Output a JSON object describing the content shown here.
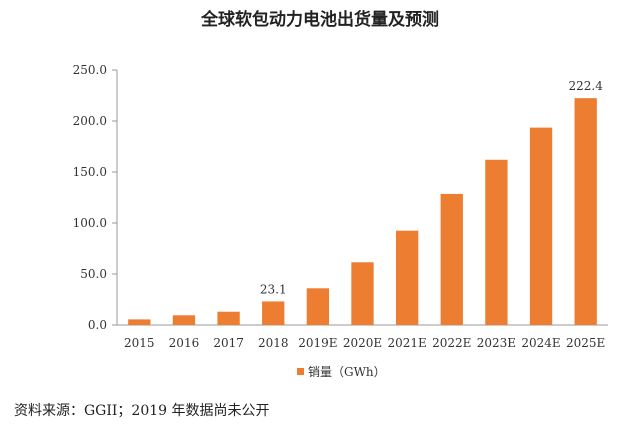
{
  "chart_data": {
    "type": "bar",
    "title": "全球软包动力电池出货量及预测",
    "categories": [
      "2015",
      "2016",
      "2017",
      "2018",
      "2019E",
      "2020E",
      "2021E",
      "2022E",
      "2023E",
      "2024E",
      "2025E"
    ],
    "series": [
      {
        "name": "销量（GWh）",
        "color": "#ED7D31",
        "values": [
          5.5,
          9.5,
          13.0,
          23.1,
          36.0,
          61.5,
          92.5,
          128.5,
          162.0,
          193.5,
          222.4
        ]
      }
    ],
    "data_labels": [
      {
        "index": 3,
        "text": "23.1"
      },
      {
        "index": 10,
        "text": "222.4"
      }
    ],
    "ylim": [
      0,
      250
    ],
    "yticks": [
      "0.0",
      "50.0",
      "100.0",
      "150.0",
      "200.0",
      "250.0"
    ],
    "grid": false,
    "legend_position": "bottom"
  },
  "source": "资料来源：GGII；2019 年数据尚未公开"
}
